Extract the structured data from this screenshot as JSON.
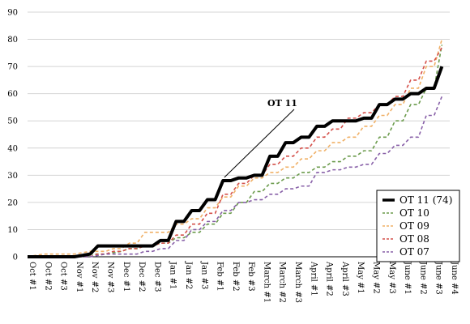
{
  "chart_data": {
    "type": "line",
    "title": "",
    "xlabel": "",
    "ylabel": "",
    "ylim": [
      0,
      90
    ],
    "yticks": [
      0,
      10,
      20,
      30,
      40,
      50,
      60,
      70,
      80,
      90
    ],
    "grid": "horizontal",
    "legend_position": "bottom-right",
    "categories": [
      "Oct #1",
      "Oct #2",
      "Oct #3",
      "Nov #1",
      "Nov #2",
      "Nov #3",
      "Dec #1",
      "Dec #2",
      "Dec #3",
      "Jan #1",
      "Jan #2",
      "Jan #3",
      "Feb #1",
      "Feb #2",
      "Feb #3",
      "March #1",
      "March #2",
      "March #3",
      "April #1",
      "April #2",
      "April #3",
      "May #1",
      "May #2",
      "May #3",
      "June #1",
      "June #2",
      "June #3",
      "June #4"
    ],
    "tick_labels": [
      "Oct #1",
      "Oct #2",
      "Oct #3",
      "Nov #1",
      "Nov #2",
      "Nov #3",
      "Dec #1",
      "Dec #2",
      "Dec #3",
      "Jan #1",
      "Jan #2",
      "Jan #3",
      "Feb #1",
      "Feb #2",
      "Feb #3",
      "March #1",
      "March #2",
      "March #3",
      "April #1",
      "April #2",
      "April #3",
      "May #1",
      "May #2",
      "May #3",
      "June #1",
      "June #2",
      "June #3",
      "June #4"
    ],
    "annotation": {
      "text": "OT 11",
      "points_to_index": 13
    },
    "series": [
      {
        "name": "OT 11 (74)",
        "color": "#000000",
        "dashed": false,
        "x": [
          0,
          0.5,
          1,
          1.5,
          2,
          2.5,
          3,
          3.5,
          4,
          4.5,
          5,
          5.5,
          6,
          6.5,
          7,
          7.5,
          8,
          8.5,
          9,
          9.5,
          10,
          10.5,
          11,
          11.5,
          12,
          12.5,
          13,
          13.5,
          14,
          14.5,
          15,
          15.5,
          16,
          16.5,
          17,
          17.5,
          18,
          18.5,
          19,
          19.5,
          20,
          20.5,
          21,
          21.5,
          22,
          22.5,
          23,
          23.5,
          24,
          24.5,
          25,
          25.5,
          26,
          26.5
        ],
        "values": [
          0,
          0,
          0,
          0,
          0,
          0,
          0,
          0.5,
          1,
          4,
          4,
          4,
          4,
          4,
          4,
          4,
          4,
          6,
          6,
          13,
          13,
          17,
          17,
          21,
          21,
          28,
          28,
          29,
          29,
          30,
          30,
          37,
          37,
          42,
          42,
          44,
          44,
          48,
          48,
          50,
          50,
          50,
          50,
          51,
          51,
          56,
          56,
          58,
          58,
          60,
          60,
          62,
          62,
          70
        ]
      },
      {
        "name": "OT 10",
        "color": "#6b9b4c",
        "dashed": true,
        "x": [
          0,
          0.5,
          1,
          1.5,
          2,
          2.5,
          3,
          3.5,
          4,
          4.5,
          5,
          5.5,
          6,
          6.5,
          7,
          7.5,
          8,
          8.5,
          9,
          9.5,
          10,
          10.5,
          11,
          11.5,
          12,
          12.5,
          13,
          13.5,
          14,
          14.5,
          15,
          15.5,
          16,
          16.5,
          17,
          17.5,
          18,
          18.5,
          19,
          19.5,
          20,
          20.5,
          21,
          21.5,
          22,
          22.5,
          23,
          23.5,
          24,
          24.5,
          25,
          25.5,
          26,
          26.5
        ],
        "values": [
          0,
          0,
          0,
          0,
          0,
          0,
          0,
          0.5,
          1,
          1,
          1,
          1.5,
          2,
          3,
          3,
          4,
          4,
          5,
          5,
          7,
          7,
          9,
          9,
          12,
          12,
          16,
          16,
          20,
          20,
          24,
          24,
          27,
          27,
          29,
          29,
          31,
          31,
          33,
          33,
          35,
          35,
          37,
          37,
          39,
          39,
          44,
          44,
          50,
          50,
          56,
          56,
          62,
          62,
          78
        ]
      },
      {
        "name": "OT 09",
        "color": "#f0b066",
        "dashed": true,
        "x": [
          0,
          0.5,
          1,
          1.5,
          2,
          2.5,
          3,
          3.5,
          4,
          4.5,
          5,
          5.5,
          6,
          6.5,
          7,
          7.5,
          8,
          8.5,
          9,
          9.5,
          10,
          10.5,
          11,
          11.5,
          12,
          12.5,
          13,
          13.5,
          14,
          14.5,
          15,
          15.5,
          16,
          16.5,
          17,
          17.5,
          18,
          18.5,
          19,
          19.5,
          20,
          20.5,
          21,
          21.5,
          22,
          22.5,
          23,
          23.5,
          24,
          24.5,
          25,
          25.5,
          26,
          26.5
        ],
        "values": [
          0,
          0.5,
          1,
          1,
          1,
          1,
          1,
          1.5,
          2,
          2,
          2,
          3,
          3,
          5,
          5,
          9,
          9,
          9,
          9,
          12,
          12,
          14,
          14,
          18,
          18,
          22,
          22,
          26,
          26,
          29,
          29,
          31,
          31,
          33,
          33,
          36,
          36,
          39,
          39,
          42,
          42,
          44,
          44,
          48,
          48,
          52,
          52,
          56,
          56,
          62,
          62,
          70,
          70,
          80
        ]
      },
      {
        "name": "OT 08",
        "color": "#d4504a",
        "dashed": true,
        "x": [
          0,
          0.5,
          1,
          1.5,
          2,
          2.5,
          3,
          3.5,
          4,
          4.5,
          5,
          5.5,
          6,
          6.5,
          7,
          7.5,
          8,
          8.5,
          9,
          9.5,
          10,
          10.5,
          11,
          11.5,
          12,
          12.5,
          13,
          13.5,
          14,
          14.5,
          15,
          15.5,
          16,
          16.5,
          17,
          17.5,
          18,
          18.5,
          19,
          19.5,
          20,
          20.5,
          21,
          21.5,
          22,
          22.5,
          23,
          23.5,
          24,
          24.5,
          25,
          25.5,
          26,
          26.5
        ],
        "values": [
          0,
          0,
          0,
          0,
          0,
          0,
          0,
          0,
          0,
          1,
          1,
          2,
          2,
          3,
          3,
          4,
          4,
          5,
          5,
          8,
          8,
          12,
          12,
          16,
          16,
          23,
          23,
          27,
          27,
          30,
          30,
          34,
          34,
          37,
          37,
          40,
          40,
          44,
          44,
          47,
          47,
          51,
          51,
          53,
          53,
          56,
          56,
          59,
          59,
          65,
          65,
          72,
          72,
          77
        ]
      },
      {
        "name": "OT 07",
        "color": "#8860a8",
        "dashed": true,
        "x": [
          0,
          0.5,
          1,
          1.5,
          2,
          2.5,
          3,
          3.5,
          4,
          4.5,
          5,
          5.5,
          6,
          6.5,
          7,
          7.5,
          8,
          8.5,
          9,
          9.5,
          10,
          10.5,
          11,
          11.5,
          12,
          12.5,
          13,
          13.5,
          14,
          14.5,
          15,
          15.5,
          16,
          16.5,
          17,
          17.5,
          18,
          18.5,
          19,
          19.5,
          20,
          20.5,
          21,
          21.5,
          22,
          22.5,
          23,
          23.5,
          24,
          24.5,
          25,
          25.5,
          26,
          26.5
        ],
        "values": [
          0,
          0,
          0,
          0,
          0,
          0,
          0,
          0,
          0,
          0.5,
          1,
          1,
          1,
          1,
          1,
          2,
          2,
          3,
          3,
          6,
          6,
          10,
          10,
          13,
          13,
          17,
          17,
          20,
          20,
          21,
          21,
          23,
          23,
          25,
          25,
          26,
          26,
          31,
          31,
          32,
          32,
          33,
          33,
          34,
          34,
          38,
          38,
          41,
          41,
          44,
          44,
          52,
          52,
          59
        ]
      }
    ]
  },
  "legend": {
    "items": [
      {
        "label": "OT 11 (74)",
        "color": "#000000",
        "dashed": false
      },
      {
        "label": "OT 10",
        "color": "#6b9b4c",
        "dashed": true
      },
      {
        "label": "OT 09",
        "color": "#f0b066",
        "dashed": true
      },
      {
        "label": "OT 08",
        "color": "#d4504a",
        "dashed": true
      },
      {
        "label": "OT 07",
        "color": "#8860a8",
        "dashed": true
      }
    ]
  }
}
